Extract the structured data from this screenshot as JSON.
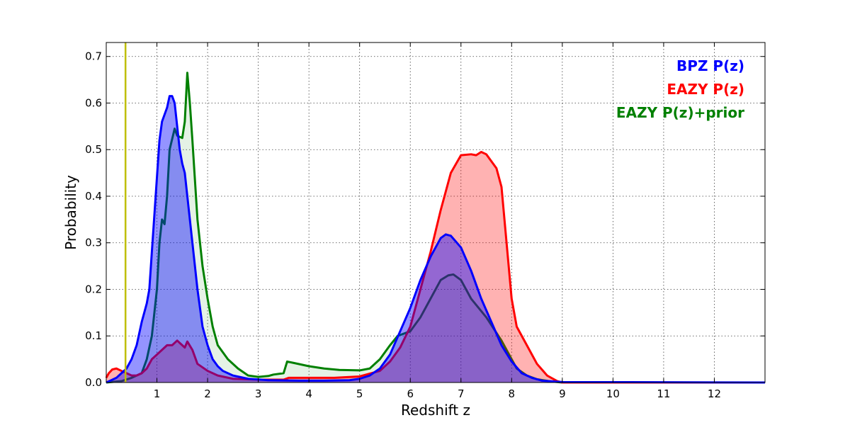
{
  "chart_data": {
    "type": "area",
    "title": "",
    "xlabel": "Redshift z",
    "ylabel": "Probability",
    "xlim": [
      0,
      13
    ],
    "ylim": [
      0,
      0.73
    ],
    "xticks": [
      1,
      2,
      3,
      4,
      5,
      6,
      7,
      8,
      9,
      10,
      11,
      12
    ],
    "yticks": [
      0.0,
      0.1,
      0.2,
      0.3,
      0.4,
      0.5,
      0.6,
      0.7
    ],
    "yticks_labels": [
      "0.0",
      "0.1",
      "0.2",
      "0.3",
      "0.4",
      "0.5",
      "0.6",
      "0.7"
    ],
    "grid": true,
    "legend_position": "top-right",
    "vline": {
      "x": 0.38,
      "color": "#bfbf00"
    },
    "series": [
      {
        "name": "EAZY P(z)+prior",
        "color": "#008000",
        "fill": "#008000",
        "fill_opacity": 0.1,
        "points": [
          [
            0,
            0
          ],
          [
            0.3,
            0.003
          ],
          [
            0.5,
            0.01
          ],
          [
            0.7,
            0.02
          ],
          [
            0.8,
            0.05
          ],
          [
            0.9,
            0.1
          ],
          [
            1.0,
            0.2
          ],
          [
            1.05,
            0.3
          ],
          [
            1.1,
            0.35
          ],
          [
            1.15,
            0.34
          ],
          [
            1.2,
            0.4
          ],
          [
            1.25,
            0.5
          ],
          [
            1.35,
            0.545
          ],
          [
            1.4,
            0.53
          ],
          [
            1.5,
            0.525
          ],
          [
            1.55,
            0.56
          ],
          [
            1.6,
            0.665
          ],
          [
            1.65,
            0.6
          ],
          [
            1.7,
            0.52
          ],
          [
            1.8,
            0.35
          ],
          [
            1.9,
            0.25
          ],
          [
            2.0,
            0.18
          ],
          [
            2.1,
            0.12
          ],
          [
            2.2,
            0.08
          ],
          [
            2.4,
            0.05
          ],
          [
            2.6,
            0.03
          ],
          [
            2.8,
            0.015
          ],
          [
            3.0,
            0.012
          ],
          [
            3.2,
            0.014
          ],
          [
            3.3,
            0.017
          ],
          [
            3.5,
            0.02
          ],
          [
            3.57,
            0.045
          ],
          [
            3.7,
            0.042
          ],
          [
            4.0,
            0.035
          ],
          [
            4.3,
            0.03
          ],
          [
            4.6,
            0.027
          ],
          [
            5.0,
            0.026
          ],
          [
            5.2,
            0.03
          ],
          [
            5.4,
            0.05
          ],
          [
            5.6,
            0.08
          ],
          [
            5.75,
            0.1
          ],
          [
            6.0,
            0.11
          ],
          [
            6.2,
            0.14
          ],
          [
            6.4,
            0.18
          ],
          [
            6.6,
            0.22
          ],
          [
            6.75,
            0.23
          ],
          [
            6.85,
            0.232
          ],
          [
            7.0,
            0.22
          ],
          [
            7.2,
            0.18
          ],
          [
            7.5,
            0.14
          ],
          [
            7.8,
            0.09
          ],
          [
            8.0,
            0.05
          ],
          [
            8.1,
            0.03
          ],
          [
            8.3,
            0.015
          ],
          [
            8.5,
            0.007
          ],
          [
            8.8,
            0.002
          ],
          [
            9.0,
            0
          ],
          [
            13,
            0
          ]
        ]
      },
      {
        "name": "EAZY P(z)",
        "color": "#ff0000",
        "fill": "#ff0000",
        "fill_opacity": 0.3,
        "points": [
          [
            0,
            0.01
          ],
          [
            0.05,
            0.02
          ],
          [
            0.12,
            0.028
          ],
          [
            0.2,
            0.03
          ],
          [
            0.3,
            0.025
          ],
          [
            0.4,
            0.02
          ],
          [
            0.5,
            0.015
          ],
          [
            0.6,
            0.015
          ],
          [
            0.7,
            0.02
          ],
          [
            0.8,
            0.03
          ],
          [
            0.9,
            0.05
          ],
          [
            1.0,
            0.06
          ],
          [
            1.1,
            0.07
          ],
          [
            1.2,
            0.08
          ],
          [
            1.3,
            0.08
          ],
          [
            1.4,
            0.09
          ],
          [
            1.5,
            0.08
          ],
          [
            1.55,
            0.075
          ],
          [
            1.6,
            0.088
          ],
          [
            1.7,
            0.07
          ],
          [
            1.8,
            0.04
          ],
          [
            2.0,
            0.025
          ],
          [
            2.2,
            0.015
          ],
          [
            2.5,
            0.008
          ],
          [
            3.0,
            0.006
          ],
          [
            3.5,
            0.006
          ],
          [
            3.6,
            0.01
          ],
          [
            4.0,
            0.01
          ],
          [
            4.5,
            0.01
          ],
          [
            5.0,
            0.013
          ],
          [
            5.4,
            0.025
          ],
          [
            5.6,
            0.045
          ],
          [
            5.8,
            0.075
          ],
          [
            6.0,
            0.12
          ],
          [
            6.2,
            0.2
          ],
          [
            6.4,
            0.28
          ],
          [
            6.6,
            0.37
          ],
          [
            6.8,
            0.45
          ],
          [
            7.0,
            0.488
          ],
          [
            7.2,
            0.49
          ],
          [
            7.3,
            0.488
          ],
          [
            7.4,
            0.495
          ],
          [
            7.5,
            0.49
          ],
          [
            7.7,
            0.46
          ],
          [
            7.8,
            0.42
          ],
          [
            7.9,
            0.3
          ],
          [
            8.0,
            0.18
          ],
          [
            8.1,
            0.12
          ],
          [
            8.3,
            0.08
          ],
          [
            8.5,
            0.04
          ],
          [
            8.7,
            0.015
          ],
          [
            8.9,
            0.003
          ],
          [
            9.0,
            0
          ],
          [
            13,
            0
          ]
        ]
      },
      {
        "name": "BPZ P(z)",
        "color": "#0000ff",
        "fill": "#0000ff",
        "fill_opacity": 0.42,
        "points": [
          [
            0,
            0
          ],
          [
            0.1,
            0.005
          ],
          [
            0.2,
            0.01
          ],
          [
            0.3,
            0.02
          ],
          [
            0.4,
            0.03
          ],
          [
            0.5,
            0.05
          ],
          [
            0.6,
            0.08
          ],
          [
            0.7,
            0.13
          ],
          [
            0.8,
            0.17
          ],
          [
            0.85,
            0.2
          ],
          [
            0.9,
            0.28
          ],
          [
            0.95,
            0.36
          ],
          [
            1.0,
            0.44
          ],
          [
            1.05,
            0.52
          ],
          [
            1.1,
            0.56
          ],
          [
            1.15,
            0.575
          ],
          [
            1.2,
            0.59
          ],
          [
            1.25,
            0.615
          ],
          [
            1.3,
            0.615
          ],
          [
            1.35,
            0.6
          ],
          [
            1.4,
            0.55
          ],
          [
            1.45,
            0.5
          ],
          [
            1.5,
            0.47
          ],
          [
            1.55,
            0.45
          ],
          [
            1.6,
            0.4
          ],
          [
            1.7,
            0.3
          ],
          [
            1.8,
            0.2
          ],
          [
            1.9,
            0.12
          ],
          [
            2.0,
            0.08
          ],
          [
            2.1,
            0.05
          ],
          [
            2.2,
            0.035
          ],
          [
            2.3,
            0.025
          ],
          [
            2.5,
            0.015
          ],
          [
            2.8,
            0.008
          ],
          [
            3.2,
            0.005
          ],
          [
            3.8,
            0.004
          ],
          [
            4.3,
            0.004
          ],
          [
            4.8,
            0.005
          ],
          [
            5.0,
            0.008
          ],
          [
            5.2,
            0.015
          ],
          [
            5.4,
            0.03
          ],
          [
            5.6,
            0.06
          ],
          [
            5.8,
            0.11
          ],
          [
            6.0,
            0.16
          ],
          [
            6.2,
            0.22
          ],
          [
            6.4,
            0.27
          ],
          [
            6.6,
            0.31
          ],
          [
            6.7,
            0.318
          ],
          [
            6.8,
            0.315
          ],
          [
            7.0,
            0.29
          ],
          [
            7.2,
            0.24
          ],
          [
            7.4,
            0.18
          ],
          [
            7.6,
            0.13
          ],
          [
            7.8,
            0.08
          ],
          [
            8.0,
            0.045
          ],
          [
            8.2,
            0.02
          ],
          [
            8.4,
            0.01
          ],
          [
            8.6,
            0.004
          ],
          [
            9.0,
            0.001
          ],
          [
            13,
            0
          ]
        ]
      }
    ],
    "legend": [
      {
        "label": "BPZ P(z)",
        "color": "#0000ff"
      },
      {
        "label": "EAZY P(z)",
        "color": "#ff0000"
      },
      {
        "label": "EAZY P(z)+prior",
        "color": "#008000"
      }
    ]
  }
}
